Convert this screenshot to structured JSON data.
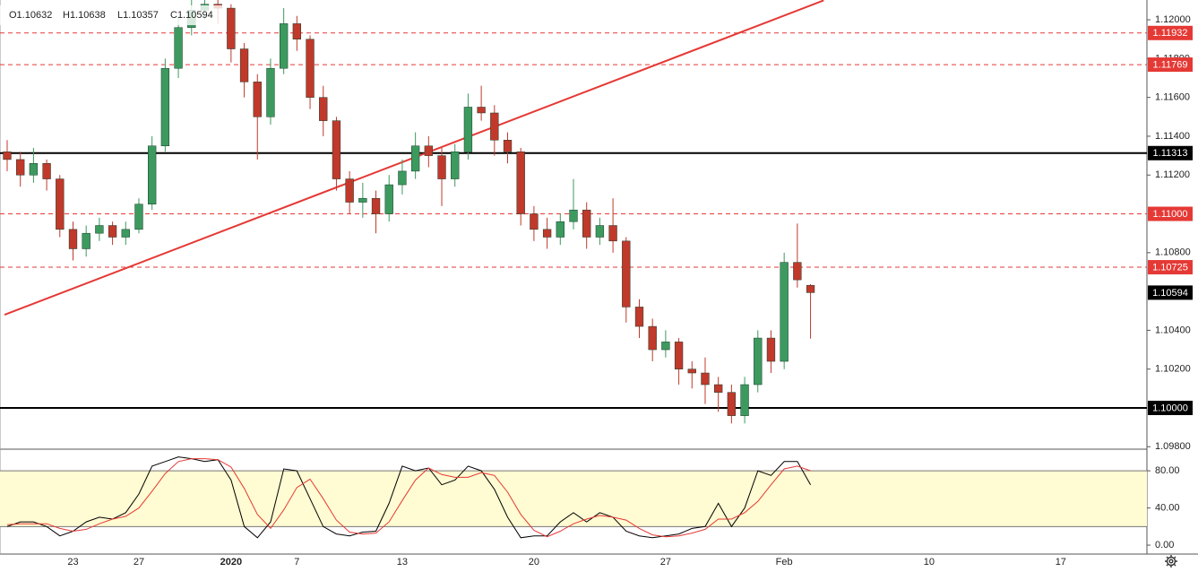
{
  "chart_data": {
    "type": "candlestick",
    "ohlc_legend": [
      "O1.10632",
      "H1.10638",
      "L1.10357",
      "C1.10594"
    ],
    "categories": [
      null,
      null,
      null,
      null,
      null,
      "23",
      null,
      null,
      null,
      null,
      "27",
      null,
      null,
      null,
      null,
      null,
      null,
      "2020",
      null,
      null,
      null,
      null,
      "7",
      null,
      null,
      null,
      null,
      null,
      null,
      null,
      "13",
      null,
      null,
      null,
      null,
      null,
      null,
      null,
      null,
      null,
      "20",
      null,
      null,
      null,
      null,
      null,
      null,
      null,
      null,
      null,
      "27",
      null,
      null,
      null,
      null,
      null,
      null,
      null,
      null,
      "Feb",
      null,
      null,
      null,
      null,
      null,
      null,
      null,
      null,
      null,
      null,
      "10",
      null,
      null,
      null,
      null,
      null,
      null,
      null,
      null,
      null,
      "17",
      null,
      null,
      null,
      null,
      null,
      null
    ],
    "open": [
      1.1132,
      1.1128,
      1.112,
      1.1126,
      1.1118,
      1.1092,
      1.1082,
      1.109,
      1.1094,
      1.1088,
      1.1092,
      1.1105,
      1.1135,
      1.1175,
      1.1196,
      1.1205,
      1.1208,
      1.1206,
      1.1185,
      1.1168,
      1.115,
      1.1175,
      1.1198,
      1.119,
      1.116,
      1.1148,
      1.1118,
      1.1106,
      1.1108,
      1.11,
      1.1115,
      1.1122,
      1.1135,
      1.113,
      1.1118,
      1.1132,
      1.1155,
      1.1152,
      1.1138,
      1.1132,
      1.11,
      1.1092,
      1.1088,
      1.1096,
      1.1102,
      1.1088,
      1.1094,
      1.1086,
      1.1052,
      1.1042,
      1.103,
      1.1034,
      1.102,
      1.1018,
      1.1012,
      1.1008,
      1.0996,
      1.1012,
      1.1036,
      1.1024,
      1.1075,
      1.10632,
      null,
      null,
      null,
      null,
      null,
      null,
      null,
      null,
      null,
      null,
      null,
      null,
      null,
      null,
      null,
      null,
      null,
      null,
      null,
      null,
      null,
      null,
      null,
      null,
      null
    ],
    "high": [
      1.1138,
      1.1132,
      1.1134,
      1.1128,
      1.112,
      1.1096,
      1.1094,
      1.1098,
      1.1096,
      1.1096,
      1.1108,
      1.114,
      1.118,
      1.1202,
      1.1212,
      1.1214,
      1.1212,
      1.1208,
      1.1188,
      1.1172,
      1.118,
      1.1206,
      1.1202,
      1.1192,
      1.1166,
      1.115,
      1.1122,
      1.1116,
      1.1112,
      1.112,
      1.1128,
      1.1142,
      1.114,
      1.1134,
      1.1136,
      1.1162,
      1.1166,
      1.1156,
      1.1142,
      1.1134,
      1.1104,
      1.1098,
      1.11,
      1.1118,
      1.1106,
      1.1098,
      1.1108,
      1.1088,
      1.1056,
      1.1046,
      1.104,
      1.1036,
      1.1024,
      1.1026,
      1.1016,
      1.1012,
      1.1016,
      1.104,
      1.104,
      1.108,
      1.1095,
      1.10638,
      null,
      null,
      null,
      null,
      null,
      null,
      null,
      null,
      null,
      null,
      null,
      null,
      null,
      null,
      null,
      null,
      null,
      null,
      null,
      null,
      null,
      null,
      null,
      null,
      null
    ],
    "low": [
      1.1122,
      1.1114,
      1.1116,
      1.1112,
      1.1088,
      1.1076,
      1.1078,
      1.1086,
      1.1084,
      1.1084,
      1.109,
      1.1102,
      1.1132,
      1.117,
      1.1192,
      1.12,
      1.1198,
      1.1178,
      1.116,
      1.1128,
      1.1146,
      1.1172,
      1.1184,
      1.1154,
      1.114,
      1.1112,
      1.11,
      1.1098,
      1.109,
      1.1096,
      1.111,
      1.1118,
      1.1124,
      1.1104,
      1.1114,
      1.1128,
      1.1148,
      1.113,
      1.1126,
      1.1094,
      1.1086,
      1.1082,
      1.1084,
      1.1092,
      1.1082,
      1.1084,
      1.108,
      1.1044,
      1.1036,
      1.1024,
      1.1026,
      1.1012,
      1.101,
      1.1002,
      1.0998,
      1.0992,
      1.0992,
      1.1008,
      1.1018,
      1.102,
      1.1062,
      1.10357,
      null,
      null,
      null,
      null,
      null,
      null,
      null,
      null,
      null,
      null,
      null,
      null,
      null,
      null,
      null,
      null,
      null,
      null,
      null,
      null,
      null,
      null,
      null,
      null,
      null
    ],
    "close": [
      1.1128,
      1.112,
      1.1126,
      1.1118,
      1.1092,
      1.1082,
      1.109,
      1.1094,
      1.1088,
      1.1092,
      1.1105,
      1.1135,
      1.1175,
      1.1196,
      1.1205,
      1.1208,
      1.1206,
      1.1185,
      1.1168,
      1.115,
      1.1175,
      1.1198,
      1.119,
      1.116,
      1.1148,
      1.1118,
      1.1106,
      1.1108,
      1.11,
      1.1115,
      1.1122,
      1.1135,
      1.113,
      1.1118,
      1.1132,
      1.1155,
      1.1152,
      1.1138,
      1.1132,
      1.11,
      1.1092,
      1.1088,
      1.1096,
      1.1102,
      1.1088,
      1.1094,
      1.1086,
      1.1052,
      1.1042,
      1.103,
      1.1034,
      1.102,
      1.1018,
      1.1012,
      1.1008,
      1.0996,
      1.1012,
      1.1036,
      1.1024,
      1.1075,
      1.1066,
      1.10594,
      null,
      null,
      null,
      null,
      null,
      null,
      null,
      null,
      null,
      null,
      null,
      null,
      null,
      null,
      null,
      null,
      null,
      null,
      null,
      null,
      null,
      null,
      null,
      null,
      null
    ],
    "up_color": "#3c9a5f",
    "down_color": "#c0392b",
    "ylim": [
      1.09792,
      1.12102
    ],
    "yticks": [
      {
        "value": 1.098,
        "label": "1.09800"
      },
      {
        "value": 1.102,
        "label": "1.10200"
      },
      {
        "value": 1.104,
        "label": "1.10400"
      },
      {
        "value": 1.108,
        "label": "1.10800"
      },
      {
        "value": 1.112,
        "label": "1.11200"
      },
      {
        "value": 1.114,
        "label": "1.11400"
      },
      {
        "value": 1.116,
        "label": "1.11600"
      },
      {
        "value": 1.118,
        "label": "1.11800"
      },
      {
        "value": 1.12,
        "label": "1.12000"
      }
    ],
    "grid": false,
    "levels": [
      {
        "value": 1.11932,
        "label": "1.11932",
        "style": "dashed",
        "color": "#e53935"
      },
      {
        "value": 1.11769,
        "label": "1.11769",
        "style": "dashed",
        "color": "#e53935"
      },
      {
        "value": 1.11313,
        "label": "1.11313",
        "style": "solid",
        "color": "#000000"
      },
      {
        "value": 1.11,
        "label": "1.11000",
        "style": "dashed",
        "color": "#e53935"
      },
      {
        "value": 1.10725,
        "label": "1.10725",
        "style": "dashed",
        "color": "#e53935"
      },
      {
        "value": 1.1,
        "label": "1.10000",
        "style": "solid",
        "color": "#000000"
      }
    ],
    "last_price": {
      "value": 1.10594,
      "label": "1.10594",
      "color": "#000000"
    },
    "trendline": {
      "x": [
        -0.2,
        62
      ],
      "y": [
        1.1048,
        1.121
      ],
      "color": "#e53935"
    },
    "indicator": {
      "type": "line",
      "ylim": [
        -9.6,
        102.3
      ],
      "yticks": [
        {
          "value": 0,
          "label": "0.00"
        },
        {
          "value": 40,
          "label": "40.00"
        },
        {
          "value": 80,
          "label": "80.00"
        }
      ],
      "band": [
        20,
        80
      ],
      "band_color": "#fffbd2",
      "series": [
        {
          "color": "#000000",
          "values": [
            20,
            25,
            25,
            20,
            10,
            15,
            25,
            30,
            28,
            35,
            55,
            85,
            90,
            95,
            93,
            90,
            92,
            70,
            20,
            8,
            25,
            82,
            80,
            50,
            20,
            12,
            10,
            14,
            15,
            45,
            85,
            80,
            83,
            65,
            70,
            85,
            80,
            60,
            30,
            8,
            10,
            10,
            25,
            35,
            25,
            35,
            30,
            15,
            10,
            8,
            10,
            12,
            18,
            20,
            45,
            20,
            40,
            80,
            75,
            90,
            90,
            65,
            null,
            null,
            null,
            null,
            null,
            null,
            null,
            null,
            null,
            null,
            null,
            null,
            null,
            null,
            null,
            null,
            null,
            null,
            null,
            null,
            null,
            null,
            null,
            null,
            null
          ]
        },
        {
          "color": "#e53935",
          "values": [
            22,
            23,
            23,
            23,
            18,
            15,
            17,
            23,
            28,
            31,
            40,
            58,
            77,
            90,
            93,
            93,
            92,
            84,
            61,
            33,
            18,
            38,
            62,
            71,
            50,
            27,
            14,
            12,
            13,
            25,
            48,
            70,
            83,
            76,
            73,
            73,
            78,
            75,
            57,
            33,
            16,
            9,
            15,
            23,
            28,
            32,
            30,
            27,
            18,
            11,
            9,
            10,
            13,
            17,
            28,
            28,
            35,
            47,
            65,
            82,
            85,
            80,
            null,
            null,
            null,
            null,
            null,
            null,
            null,
            null,
            null,
            null,
            null,
            null,
            null,
            null,
            null,
            null,
            null,
            null,
            null,
            null,
            null,
            null,
            null,
            null,
            null
          ]
        }
      ]
    }
  }
}
